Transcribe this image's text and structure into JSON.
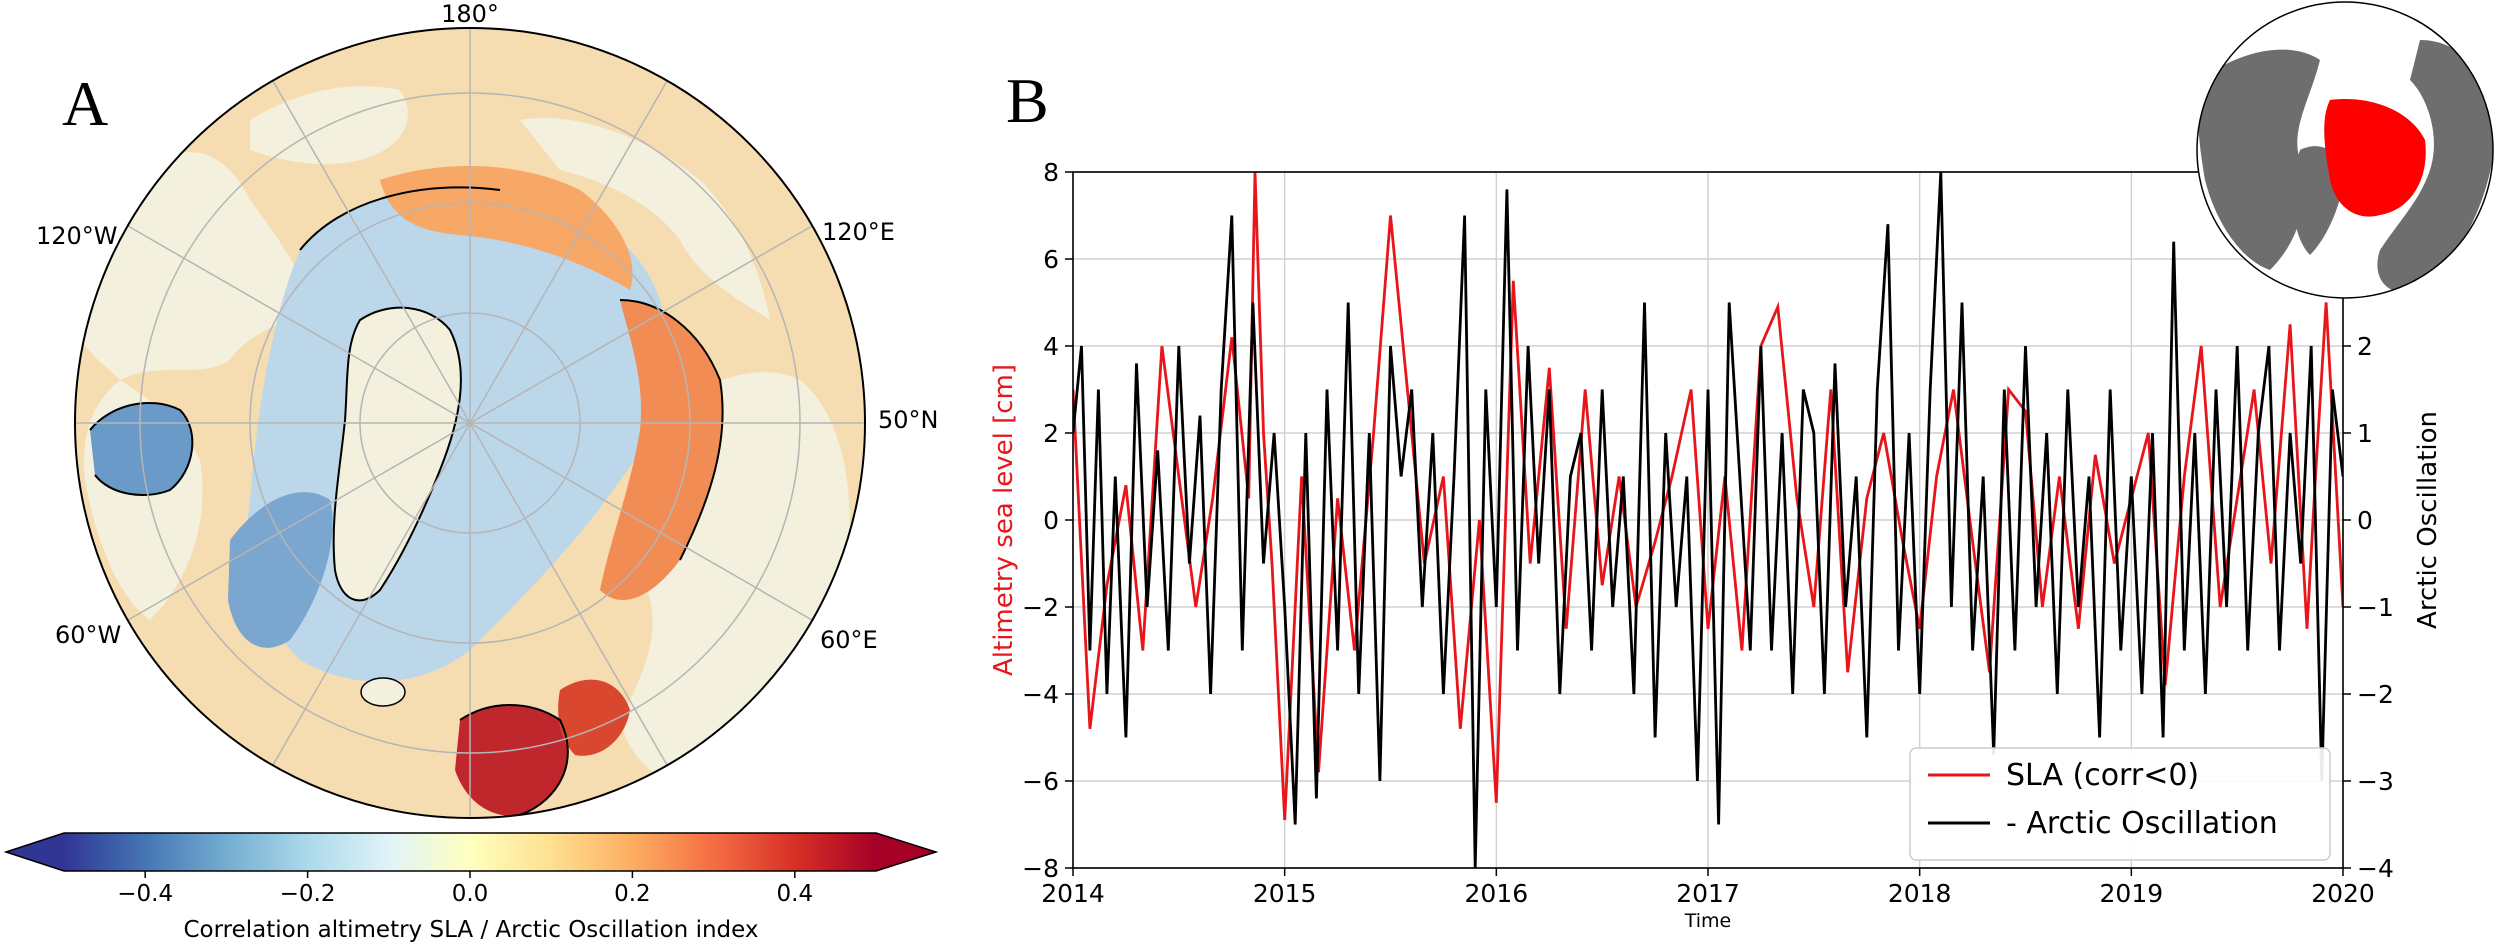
{
  "panel_a": {
    "label": "A",
    "lon_labels": [
      "180°",
      "120°E",
      "60°E",
      "120°W",
      "60°W"
    ],
    "lat_label": "50°N",
    "colorbar": {
      "label": "Correlation altimetry SLA / Arctic Oscillation index",
      "ticks": [
        "−0.4",
        "−0.2",
        "0.0",
        "0.2",
        "0.4"
      ],
      "range": [
        -0.5,
        0.5
      ],
      "colormap": [
        "#313695",
        "#4575b4",
        "#74add1",
        "#abd9e9",
        "#e0f3f8",
        "#ffffbf",
        "#fee090",
        "#fdae61",
        "#f46d43",
        "#d73027",
        "#a50026"
      ]
    },
    "colors": {
      "land": "#f3f0dd",
      "ocean_negative": "#b9d4ea",
      "ocean_deep_negative": "#6d9cc8",
      "ocean_positive": "#f7a263",
      "ocean_strong_positive": "#c0272d",
      "coastline": "#000000",
      "grid": "#b5b5b5"
    }
  },
  "panel_b": {
    "label": "B",
    "chart_data": {
      "type": "line",
      "xlabel": "Time",
      "ylabel": "Altimetry sea level [cm]",
      "y2label": "Arctic Oscillation",
      "xlim": [
        2014,
        2020
      ],
      "ylim": [
        -8,
        8
      ],
      "y2lim": [
        -4,
        4
      ],
      "x_ticks": [
        "2014",
        "2015",
        "2016",
        "2017",
        "2018",
        "2019",
        "2020"
      ],
      "y_ticks": [
        "−8",
        "−6",
        "−4",
        "−2",
        "0",
        "2",
        "4",
        "6",
        "8"
      ],
      "y2_ticks": [
        "−4",
        "−3",
        "−2",
        "−1",
        "0",
        "1",
        "2"
      ],
      "grid": true,
      "legend_position": "bottom-right",
      "inset": "polar map of the Northern Hemisphere, land in grey with the Arctic Ocean averaging region in red",
      "series": [
        {
          "name": "SLA (corr<0)",
          "color": "#e8151b",
          "axis": "left",
          "x": [
            2014.0,
            2014.08,
            2014.16,
            2014.25,
            2014.33,
            2014.42,
            2014.5,
            2014.58,
            2014.66,
            2014.75,
            2014.83,
            2014.86,
            2014.9,
            2014.94,
            2015.0,
            2015.08,
            2015.16,
            2015.25,
            2015.33,
            2015.42,
            2015.5,
            2015.58,
            2015.66,
            2015.75,
            2015.83,
            2015.92,
            2016.0,
            2016.08,
            2016.16,
            2016.25,
            2016.33,
            2016.42,
            2016.5,
            2016.58,
            2016.66,
            2016.75,
            2016.83,
            2016.92,
            2017.0,
            2017.08,
            2017.16,
            2017.25,
            2017.33,
            2017.42,
            2017.5,
            2017.58,
            2017.66,
            2017.75,
            2017.83,
            2017.92,
            2018.0,
            2018.08,
            2018.16,
            2018.25,
            2018.33,
            2018.42,
            2018.5,
            2018.58,
            2018.66,
            2018.75,
            2018.83,
            2018.92,
            2019.0,
            2019.08,
            2019.16,
            2019.25,
            2019.33,
            2019.42,
            2019.5,
            2019.58,
            2019.66,
            2019.75,
            2019.83,
            2019.87,
            2019.92,
            2020.0
          ],
          "y": [
            3.0,
            -4.8,
            -1.5,
            0.8,
            -3.0,
            4.0,
            1.0,
            -2.0,
            0.5,
            4.2,
            0.5,
            8.0,
            2.0,
            -1.0,
            -6.9,
            1.0,
            -5.8,
            0.5,
            -3.0,
            2.0,
            7.0,
            3.0,
            -1.0,
            1.0,
            -4.8,
            0.0,
            -6.5,
            5.5,
            -1.0,
            3.5,
            -2.5,
            3.0,
            -1.5,
            1.0,
            -2.0,
            -0.5,
            1.0,
            3.0,
            -2.5,
            1.0,
            -3.0,
            4.0,
            4.9,
            0.5,
            -2.0,
            3.0,
            -3.5,
            0.5,
            2.0,
            -0.5,
            -2.5,
            1.0,
            3.0,
            -0.5,
            -3.5,
            3.0,
            2.5,
            -2.0,
            1.0,
            -2.5,
            1.5,
            -1.0,
            0.5,
            2.0,
            -3.8,
            1.0,
            4.0,
            -2.0,
            0.5,
            3.0,
            -1.0,
            4.5,
            -2.5,
            1.0,
            5.0,
            -2.0
          ]
        },
        {
          "name": "- Arctic Oscillation",
          "color": "#000000",
          "axis": "right",
          "x": [
            2014.0,
            2014.04,
            2014.08,
            2014.12,
            2014.16,
            2014.2,
            2014.25,
            2014.3,
            2014.35,
            2014.4,
            2014.45,
            2014.5,
            2014.55,
            2014.6,
            2014.65,
            2014.7,
            2014.75,
            2014.8,
            2014.85,
            2014.9,
            2014.95,
            2015.0,
            2015.05,
            2015.1,
            2015.15,
            2015.2,
            2015.25,
            2015.3,
            2015.35,
            2015.4,
            2015.45,
            2015.5,
            2015.55,
            2015.6,
            2015.65,
            2015.7,
            2015.75,
            2015.8,
            2015.85,
            2015.9,
            2015.95,
            2016.0,
            2016.05,
            2016.1,
            2016.15,
            2016.2,
            2016.25,
            2016.3,
            2016.35,
            2016.4,
            2016.45,
            2016.5,
            2016.55,
            2016.6,
            2016.65,
            2016.7,
            2016.75,
            2016.8,
            2016.85,
            2016.9,
            2016.95,
            2017.0,
            2017.05,
            2017.1,
            2017.15,
            2017.2,
            2017.25,
            2017.3,
            2017.35,
            2017.4,
            2017.45,
            2017.5,
            2017.55,
            2017.6,
            2017.65,
            2017.7,
            2017.75,
            2017.8,
            2017.85,
            2017.9,
            2017.95,
            2018.0,
            2018.05,
            2018.1,
            2018.15,
            2018.2,
            2018.25,
            2018.3,
            2018.35,
            2018.4,
            2018.45,
            2018.5,
            2018.55,
            2018.6,
            2018.65,
            2018.7,
            2018.75,
            2018.8,
            2018.85,
            2018.9,
            2018.95,
            2019.0,
            2019.05,
            2019.1,
            2019.15,
            2019.2,
            2019.25,
            2019.3,
            2019.35,
            2019.4,
            2019.45,
            2019.5,
            2019.55,
            2019.6,
            2019.65,
            2019.7,
            2019.75,
            2019.8,
            2019.85,
            2019.9,
            2019.95,
            2020.0
          ],
          "y": [
            1.0,
            2.0,
            -1.5,
            1.5,
            -2.0,
            0.5,
            -2.5,
            1.8,
            -1.0,
            0.8,
            -1.5,
            2.0,
            -0.5,
            1.2,
            -2.0,
            1.5,
            3.5,
            -1.5,
            2.5,
            -0.5,
            1.0,
            -1.0,
            -3.5,
            1.0,
            -3.2,
            1.5,
            -1.5,
            2.5,
            -2.0,
            1.0,
            -3.0,
            2.0,
            0.5,
            1.5,
            -1.0,
            1.0,
            -2.0,
            0.5,
            3.5,
            -4.0,
            1.5,
            -1.0,
            3.8,
            -1.5,
            2.0,
            -0.5,
            1.5,
            -2.0,
            0.5,
            1.0,
            -1.5,
            1.5,
            -1.0,
            0.5,
            -2.0,
            2.5,
            -2.5,
            1.0,
            -1.0,
            0.5,
            -3.0,
            1.5,
            -3.5,
            2.5,
            0.5,
            -1.5,
            2.0,
            -1.5,
            1.0,
            -2.0,
            1.5,
            1.0,
            -2.0,
            1.8,
            -1.0,
            0.5,
            -2.5,
            1.5,
            3.4,
            -1.5,
            1.0,
            -2.0,
            1.5,
            4.0,
            -1.0,
            2.5,
            -1.5,
            0.5,
            -2.7,
            1.5,
            -1.5,
            2.0,
            -1.0,
            1.0,
            -2.0,
            1.5,
            -1.0,
            0.5,
            -2.5,
            1.5,
            -1.5,
            0.5,
            -2.0,
            1.0,
            -2.5,
            3.2,
            -1.5,
            1.0,
            -2.0,
            1.5,
            -1.0,
            2.0,
            -1.5,
            1.0,
            2.0,
            -1.5,
            1.0,
            -0.5,
            2.0,
            -3.0,
            1.5,
            0.5
          ]
        }
      ]
    }
  }
}
